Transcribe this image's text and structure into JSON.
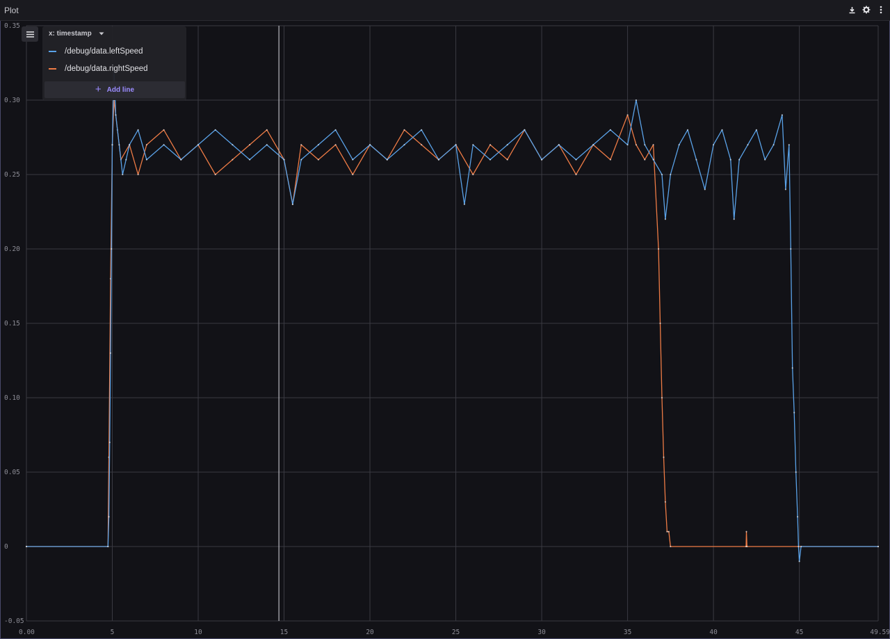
{
  "panel": {
    "title": "Plot"
  },
  "toolbar": {
    "icons": [
      "download-icon",
      "gear-icon",
      "more-vertical-icon"
    ]
  },
  "legend": {
    "x_axis_label": "x: timestamp",
    "add_line_label": "Add line",
    "series": [
      {
        "label": "/debug/data.leftSpeed",
        "color": "#5aa2e8"
      },
      {
        "label": "/debug/data.rightSpeed",
        "color": "#ee7b45"
      }
    ]
  },
  "chart_data": {
    "type": "line",
    "xlim": [
      0,
      49.59
    ],
    "ylim": [
      -0.05,
      0.35
    ],
    "x_ticks": [
      "0.00",
      "5",
      "10",
      "15",
      "20",
      "25",
      "30",
      "35",
      "40",
      "45",
      "49.59"
    ],
    "y_ticks": [
      "0.35",
      "0.30",
      "0.25",
      "0.20",
      "0.15",
      "0.10",
      "0.05",
      "0",
      "-0.05"
    ],
    "grid": true,
    "legend_position": "top-left",
    "cursor_x": 14.7,
    "series": [
      {
        "name": "/debug/data.leftSpeed",
        "color": "#5aa2e8",
        "x": [
          0,
          4.75,
          4.8,
          4.85,
          4.9,
          4.95,
          5.0,
          5.1,
          5.2,
          5.4,
          5.6,
          5.8,
          6.0,
          6.5,
          7.0,
          8.0,
          9.0,
          10.0,
          11.0,
          12.0,
          13.0,
          14.0,
          15.0,
          15.5,
          16.0,
          17.0,
          18.0,
          19.0,
          20.0,
          21.0,
          22.0,
          23.0,
          24.0,
          25.0,
          25.5,
          26.0,
          27.0,
          28.0,
          29.0,
          30.0,
          31.0,
          32.0,
          33.0,
          34.0,
          35.0,
          35.5,
          36.0,
          36.5,
          37.0,
          37.2,
          37.5,
          38.0,
          38.5,
          39.0,
          39.5,
          40.0,
          40.5,
          41.0,
          41.2,
          41.5,
          42.0,
          42.5,
          43.0,
          43.5,
          44.0,
          44.2,
          44.4,
          44.5,
          44.6,
          44.7,
          44.8,
          44.9,
          44.95,
          45.0,
          45.1,
          49.59
        ],
        "values": [
          0,
          0,
          0.02,
          0.07,
          0.13,
          0.2,
          0.27,
          0.32,
          0.29,
          0.27,
          0.25,
          0.26,
          0.27,
          0.28,
          0.26,
          0.27,
          0.26,
          0.27,
          0.28,
          0.27,
          0.26,
          0.27,
          0.26,
          0.23,
          0.26,
          0.27,
          0.28,
          0.26,
          0.27,
          0.26,
          0.27,
          0.28,
          0.26,
          0.27,
          0.23,
          0.27,
          0.26,
          0.27,
          0.28,
          0.26,
          0.27,
          0.26,
          0.27,
          0.28,
          0.27,
          0.3,
          0.27,
          0.26,
          0.25,
          0.22,
          0.25,
          0.27,
          0.28,
          0.26,
          0.24,
          0.27,
          0.28,
          0.26,
          0.22,
          0.26,
          0.27,
          0.28,
          0.26,
          0.27,
          0.29,
          0.24,
          0.27,
          0.2,
          0.12,
          0.09,
          0.05,
          0.02,
          0,
          -0.01,
          0,
          0
        ]
      },
      {
        "name": "/debug/data.rightSpeed",
        "color": "#ee7b45",
        "x": [
          0,
          4.75,
          4.8,
          4.9,
          5.0,
          5.1,
          5.3,
          5.5,
          6.0,
          6.5,
          7.0,
          8.0,
          9.0,
          10.0,
          11.0,
          12.0,
          13.0,
          14.0,
          15.0,
          15.5,
          16.0,
          17.0,
          18.0,
          19.0,
          20.0,
          21.0,
          22.0,
          23.0,
          24.0,
          25.0,
          26.0,
          27.0,
          28.0,
          29.0,
          30.0,
          31.0,
          32.0,
          33.0,
          34.0,
          35.0,
          35.5,
          36.0,
          36.5,
          36.8,
          36.9,
          37.0,
          37.1,
          37.2,
          37.3,
          37.4,
          37.5,
          41.9,
          41.92,
          41.95,
          49.59
        ],
        "values": [
          0,
          0,
          0.06,
          0.18,
          0.27,
          0.3,
          0.28,
          0.26,
          0.27,
          0.25,
          0.27,
          0.28,
          0.26,
          0.27,
          0.25,
          0.26,
          0.27,
          0.28,
          0.26,
          0.23,
          0.27,
          0.26,
          0.27,
          0.25,
          0.27,
          0.26,
          0.28,
          0.27,
          0.26,
          0.27,
          0.25,
          0.27,
          0.26,
          0.28,
          0.26,
          0.27,
          0.25,
          0.27,
          0.26,
          0.29,
          0.27,
          0.26,
          0.27,
          0.2,
          0.15,
          0.1,
          0.06,
          0.03,
          0.01,
          0.01,
          0,
          0,
          0.01,
          0,
          0
        ]
      }
    ]
  }
}
